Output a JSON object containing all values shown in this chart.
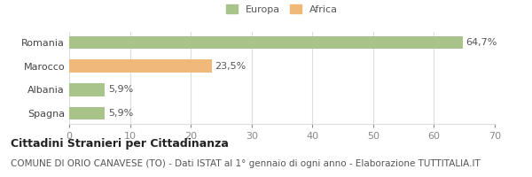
{
  "categories": [
    "Romania",
    "Marocco",
    "Albania",
    "Spagna"
  ],
  "values": [
    64.7,
    23.5,
    5.9,
    5.9
  ],
  "bar_colors": [
    "#a8c48a",
    "#f0b97a",
    "#a8c48a",
    "#a8c48a"
  ],
  "bar_labels": [
    "64,7%",
    "23,5%",
    "5,9%",
    "5,9%"
  ],
  "xlim": [
    0,
    70
  ],
  "xticks": [
    0,
    10,
    20,
    30,
    40,
    50,
    60,
    70
  ],
  "legend_labels": [
    "Europa",
    "Africa"
  ],
  "legend_colors": [
    "#a8c48a",
    "#f0b97a"
  ],
  "title_bold": "Cittadini Stranieri per Cittadinanza",
  "subtitle": "COMUNE DI ORIO CANAVESE (TO) - Dati ISTAT al 1° gennaio di ogni anno - Elaborazione TUTTITALIA.IT",
  "background_color": "#ffffff",
  "grid_color": "#dddddd",
  "label_fontsize": 8,
  "tick_fontsize": 8,
  "title_fontsize": 9,
  "subtitle_fontsize": 7.5
}
